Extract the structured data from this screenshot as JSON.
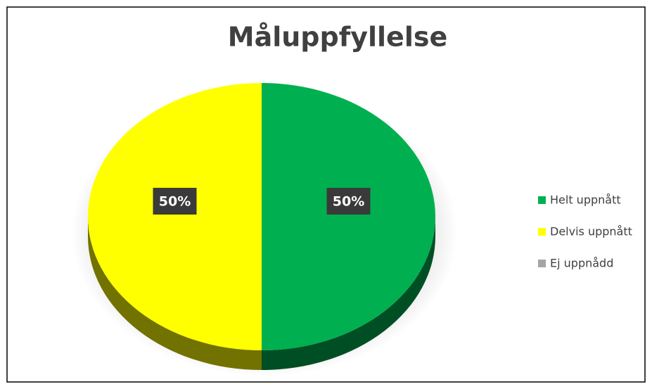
{
  "chart_data": {
    "type": "pie",
    "title": "Måluppfyllelse",
    "categories": [
      "Helt uppnått",
      "Delvis uppnått",
      "Ej uppnådd"
    ],
    "values": [
      50,
      50,
      0
    ],
    "value_labels": [
      "50%",
      "50%",
      null
    ],
    "colors": [
      "#00b050",
      "#ffff00",
      "#a5a5a5"
    ],
    "legend": "right"
  }
}
